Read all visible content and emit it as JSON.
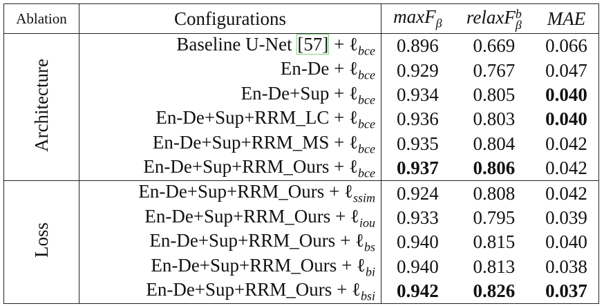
{
  "header": {
    "ablation": "Ablation",
    "configurations": "Configurations",
    "metrics": [
      {
        "text": "maxF",
        "sub": "β"
      },
      {
        "text": "relaxF",
        "sub": "β",
        "sup": "b"
      },
      {
        "text": "MAE"
      }
    ]
  },
  "groups": [
    {
      "label": "Architecture",
      "rows": [
        {
          "config": "Baseline U-Net",
          "ref": "[57]",
          "op": "+ ℓ",
          "sub": "bce",
          "cells": [
            "0.896",
            "0.669",
            "0.066"
          ],
          "bold": [
            false,
            false,
            false
          ]
        },
        {
          "config": "En-De",
          "op": "+ ℓ",
          "sub": "bce",
          "cells": [
            "0.929",
            "0.767",
            "0.047"
          ],
          "bold": [
            false,
            false,
            false
          ]
        },
        {
          "config": "En-De+Sup",
          "op": "+ ℓ",
          "sub": "bce",
          "cells": [
            "0.934",
            "0.805",
            "0.040"
          ],
          "bold": [
            false,
            false,
            true
          ]
        },
        {
          "config": "En-De+Sup+RRM_LC",
          "op": "+ ℓ",
          "sub": "bce",
          "cells": [
            "0.936",
            "0.803",
            "0.040"
          ],
          "bold": [
            false,
            false,
            true
          ]
        },
        {
          "config": "En-De+Sup+RRM_MS",
          "op": "+ ℓ",
          "sub": "bce",
          "cells": [
            "0.935",
            "0.804",
            "0.042"
          ],
          "bold": [
            false,
            false,
            false
          ]
        },
        {
          "config": "En-De+Sup+RRM_Ours",
          "op": "+ ℓ",
          "sub": "bce",
          "cells": [
            "0.937",
            "0.806",
            "0.042"
          ],
          "bold": [
            true,
            true,
            false
          ]
        }
      ]
    },
    {
      "label": "Loss",
      "rows": [
        {
          "config": "En-De+Sup+RRM_Ours",
          "op": "+ ℓ",
          "sub": "ssim",
          "cells": [
            "0.924",
            "0.808",
            "0.042"
          ],
          "bold": [
            false,
            false,
            false
          ]
        },
        {
          "config": "En-De+Sup+RRM_Ours",
          "op": "+ ℓ",
          "sub": "iou",
          "cells": [
            "0.933",
            "0.795",
            "0.039"
          ],
          "bold": [
            false,
            false,
            false
          ]
        },
        {
          "config": "En-De+Sup+RRM_Ours",
          "op": "+ ℓ",
          "sub": "bs",
          "cells": [
            "0.940",
            "0.815",
            "0.040"
          ],
          "bold": [
            false,
            false,
            false
          ]
        },
        {
          "config": "En-De+Sup+RRM_Ours",
          "op": "+ ℓ",
          "sub": "bi",
          "cells": [
            "0.940",
            "0.813",
            "0.038"
          ],
          "bold": [
            false,
            false,
            false
          ]
        },
        {
          "config": "En-De+Sup+RRM_Ours",
          "op": "+ ℓ",
          "sub": "bsi",
          "cells": [
            "0.942",
            "0.826",
            "0.037"
          ],
          "bold": [
            true,
            true,
            true
          ]
        }
      ]
    }
  ]
}
